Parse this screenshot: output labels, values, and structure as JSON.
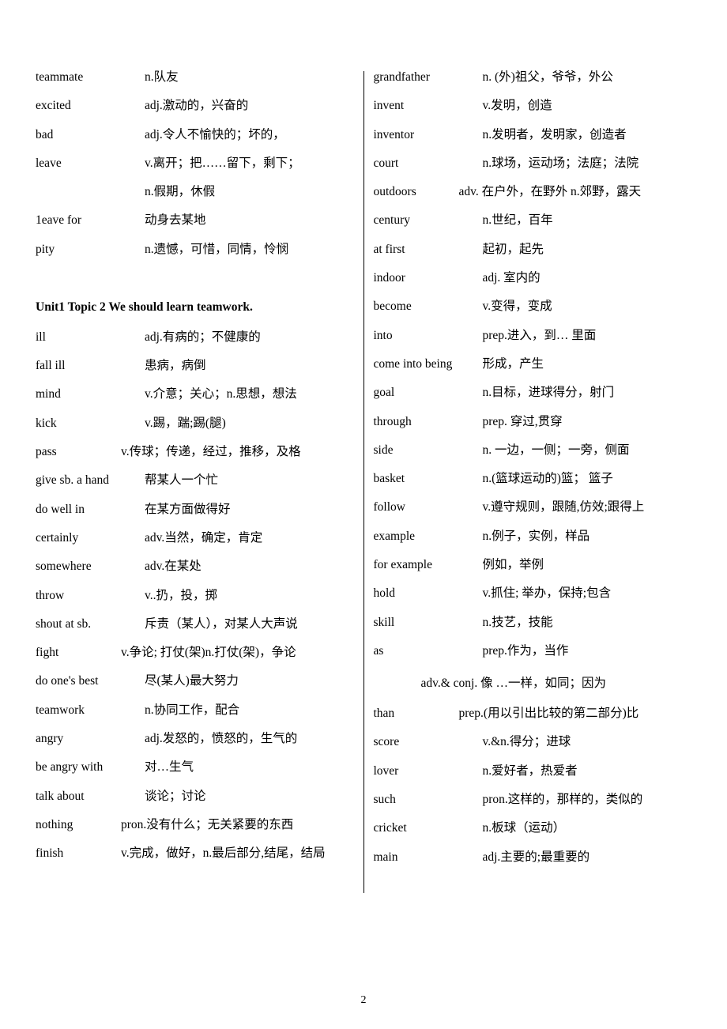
{
  "page_number": "2",
  "left": {
    "entries_a": [
      {
        "term": "teammate",
        "def": "n.队友"
      },
      {
        "term": "excited",
        "def": "adj.激动的，兴奋的"
      },
      {
        "term": "bad",
        "def": "adj.令人不愉快的；坏的，"
      },
      {
        "term": "leave",
        "def": "v.离开；把……留下，剩下；"
      },
      {
        "term": "",
        "def": "n.假期，休假"
      },
      {
        "term": "1eave for",
        "def": "动身去某地"
      },
      {
        "term": "pity",
        "def": "n.遗憾，可惜，同情，怜悯"
      }
    ],
    "heading": "Unit1        Topic 2 We should learn teamwork.",
    "entries_b": [
      {
        "term": "ill",
        "def": "adj.有病的；不健康的"
      },
      {
        "term": "fall ill",
        "def": "患病，病倒"
      },
      {
        "term": "mind",
        "def": "v.介意；关心；n.思想，想法"
      },
      {
        "term": "kick",
        "def": "v.踢，踹;踢(腿)"
      },
      {
        "term": "pass",
        "def": "v.传球；传递，经过，推移，及格",
        "align": "right"
      },
      {
        "term": "give sb. a hand",
        "def": "帮某人一个忙"
      },
      {
        "term": "do well in",
        "def": "在某方面做得好"
      },
      {
        "term": "certainly",
        "def": "adv.当然，确定，肯定"
      },
      {
        "term": "somewhere",
        "def": "adv.在某处"
      },
      {
        "term": "throw",
        "def": "v..扔，投，掷"
      },
      {
        "term": "shout at sb.",
        "def": "斥责（某人），对某人大声说"
      },
      {
        "term": "fight",
        "def": "v.争论; 打仗(架)n.打仗(架)，争论",
        "align": "right"
      },
      {
        "term": "do one's best",
        "def": "尽(某人)最大努力"
      },
      {
        "term": "teamwork",
        "def": "n.协同工作，配合"
      },
      {
        "term": "angry",
        "def": "adj.发怒的，愤怒的，生气的"
      },
      {
        "term": "be angry with",
        "def": "对…生气"
      },
      {
        "term": "talk about",
        "def": "谈论；讨论"
      },
      {
        "term": "nothing",
        "def": "pron.没有什么；无关紧要的东西",
        "align": "right"
      },
      {
        "term": "finish",
        "def": "v.完成，做好，n.最后部分,结尾，结局",
        "align": "right"
      }
    ]
  },
  "right": {
    "entries": [
      {
        "term": "grandfather",
        "def": "n. (外)祖父，爷爷，外公"
      },
      {
        "term": "invent",
        "def": "v.发明，创造"
      },
      {
        "term": "inventor",
        "def": "n.发明者，发明家，创造者"
      },
      {
        "term": "court",
        "def": "n.球场，运动场；法庭；法院"
      },
      {
        "term": "outdoors",
        "def": "adv. 在户外，在野外 n.郊野，露天",
        "align": "right"
      },
      {
        "term": "century",
        "def": "n.世纪，百年"
      },
      {
        "term": "at first",
        "def": "起初，起先"
      },
      {
        "term": "indoor",
        "def": "adj. 室内的"
      },
      {
        "term": "become",
        "def": "v.变得，变成"
      },
      {
        "term": "into",
        "def": "prep.进入，到… 里面"
      },
      {
        "term": "come into being",
        "def": "形成，产生"
      },
      {
        "term": "goal",
        "def": "n.目标，进球得分，射门"
      },
      {
        "term": "through",
        "def": "prep. 穿过,贯穿"
      },
      {
        "term": "side",
        "def": "n. 一边，一侧；一旁，侧面"
      },
      {
        "term": "basket",
        "def": "n.(篮球运动的)篮；  篮子"
      },
      {
        "term": "follow",
        "def": "v.遵守规则，跟随,仿效;跟得上"
      },
      {
        "term": "example",
        "def": "n.例子，实例，样品"
      },
      {
        "term": "for example",
        "def": "例如，举例"
      },
      {
        "term": "hold",
        "def": "v.抓住; 举办，保持;包含"
      },
      {
        "term": "skill",
        "def": "n.技艺，技能"
      },
      {
        "term": "as",
        "def": "prep.作为，当作"
      }
    ],
    "continuation": "adv.& conj. 像 …一样，如同；因为",
    "entries_c": [
      {
        "term": "than",
        "def": "prep.(用以引出比较的第二部分)比",
        "align": "right"
      },
      {
        "term": "score",
        "def": "v.&n.得分；进球"
      },
      {
        "term": "lover",
        "def": "n.爱好者，热爱者"
      },
      {
        "term": "such",
        "def": "pron.这样的，那样的，类似的"
      },
      {
        "term": "cricket",
        "def": "n.板球（运动）"
      },
      {
        "term": "main",
        "def": "adj.主要的;最重要的"
      }
    ]
  }
}
